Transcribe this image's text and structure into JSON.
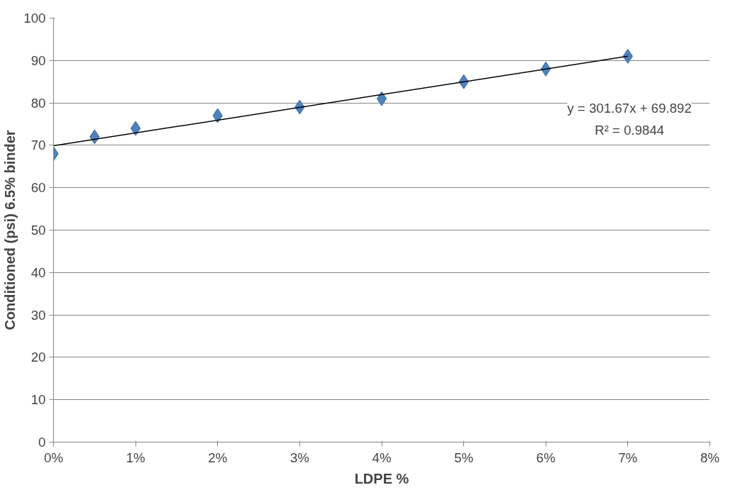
{
  "chart_data": {
    "type": "scatter",
    "xlabel": "LDPE %",
    "ylabel": "Conditioned (psi) 6.5% binder",
    "x": [
      0,
      0.005,
      0.01,
      0.02,
      0.03,
      0.04,
      0.05,
      0.06,
      0.07
    ],
    "series": [
      {
        "color": "#4f81bd",
        "marker": "diamond",
        "values": [
          68,
          72,
          74,
          77,
          79,
          81,
          85,
          88,
          91
        ]
      },
      {
        "type": "line",
        "color": "#000000",
        "x": [
          0,
          0.07
        ],
        "values": [
          69.9,
          91.0
        ],
        "line_style": "solid"
      }
    ],
    "xlim": [
      0,
      0.08
    ],
    "ylim": [
      0,
      100
    ],
    "xticks": [
      {
        "value": 0,
        "label": "0%"
      },
      {
        "value": 0.01,
        "label": "1%"
      },
      {
        "value": 0.02,
        "label": "2%"
      },
      {
        "value": 0.03,
        "label": "3%"
      },
      {
        "value": 0.04,
        "label": "4%"
      },
      {
        "value": 0.05,
        "label": "5%"
      },
      {
        "value": 0.06,
        "label": "6%"
      },
      {
        "value": 0.07,
        "label": "7%"
      },
      {
        "value": 0.08,
        "label": "8%"
      }
    ],
    "yticks": [
      0,
      10,
      20,
      30,
      40,
      50,
      60,
      70,
      80,
      90,
      100
    ],
    "grid": "y",
    "annotations": [
      "y = 301.67x + 69.892",
      "R² = 0.9844"
    ]
  }
}
